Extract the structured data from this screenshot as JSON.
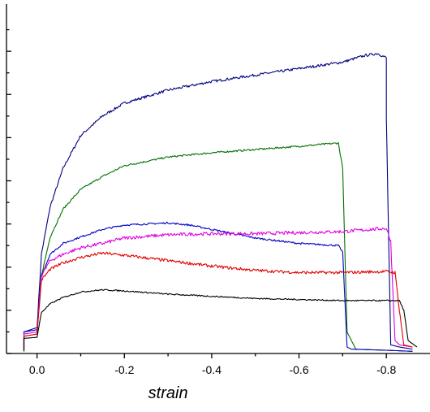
{
  "chart_data": {
    "type": "line",
    "title": "",
    "xlabel": "strain",
    "ylabel": "",
    "x_reversed": true,
    "xlim": [
      0.07,
      -0.9
    ],
    "ylim": [
      0,
      16
    ],
    "x_ticks": [
      0.0,
      -0.2,
      -0.4,
      -0.6,
      -0.8
    ],
    "x_tick_labels": [
      "0.0",
      "-0.2",
      "-0.4",
      "-0.6",
      "-0.8"
    ],
    "y_major_ticks": [
      0,
      2,
      4,
      6,
      8,
      10,
      12,
      14
    ],
    "y_minor_ticks": [
      1,
      3,
      5,
      7,
      9,
      11,
      13,
      15
    ],
    "grid": false,
    "legend": "none",
    "series": [
      {
        "color": "#000080",
        "noise": 0.06,
        "x": [
          0.03,
          0.03,
          0.0,
          -0.01,
          -0.03,
          -0.06,
          -0.1,
          -0.15,
          -0.2,
          -0.3,
          -0.4,
          -0.5,
          -0.6,
          -0.7,
          -0.75,
          -0.78,
          -0.8,
          -0.8,
          -0.81,
          -0.83,
          -0.86
        ],
        "y": [
          0.2,
          1.0,
          1.2,
          4.6,
          6.8,
          8.6,
          10.1,
          11.0,
          11.6,
          12.2,
          12.6,
          12.9,
          13.2,
          13.5,
          13.8,
          13.9,
          13.7,
          10.9,
          0.4,
          0.3,
          0.2
        ]
      },
      {
        "color": "#007000",
        "noise": 0.04,
        "x": [
          0.03,
          0.03,
          0.0,
          -0.01,
          -0.03,
          -0.06,
          -0.1,
          -0.15,
          -0.2,
          -0.3,
          -0.4,
          -0.5,
          -0.6,
          -0.69,
          -0.7,
          -0.71,
          -0.73,
          -0.8,
          -0.86
        ],
        "y": [
          0.1,
          0.8,
          0.9,
          3.6,
          5.4,
          6.7,
          7.6,
          8.2,
          8.7,
          9.1,
          9.3,
          9.45,
          9.6,
          9.75,
          8.6,
          1.0,
          0.2,
          0.15,
          0.1
        ]
      },
      {
        "color": "#0000c0",
        "noise": 0.04,
        "x": [
          0.03,
          0.03,
          0.0,
          -0.01,
          -0.03,
          -0.06,
          -0.1,
          -0.15,
          -0.2,
          -0.3,
          -0.35,
          -0.4,
          -0.5,
          -0.6,
          -0.69,
          -0.7,
          -0.71,
          -0.72,
          -0.8,
          -0.86
        ],
        "y": [
          0.2,
          1.0,
          1.1,
          3.6,
          4.6,
          5.1,
          5.4,
          5.75,
          5.95,
          6.05,
          5.95,
          5.75,
          5.35,
          5.1,
          5.0,
          4.7,
          0.3,
          0.2,
          0.15,
          0.1
        ]
      },
      {
        "color": "#e000e0",
        "noise": 0.08,
        "x": [
          0.03,
          0.03,
          0.0,
          -0.01,
          -0.03,
          -0.06,
          -0.1,
          -0.15,
          -0.2,
          -0.3,
          -0.4,
          -0.5,
          -0.6,
          -0.7,
          -0.8,
          -0.81,
          -0.82,
          -0.83,
          -0.86
        ],
        "y": [
          0.2,
          0.9,
          1.0,
          3.6,
          4.3,
          4.6,
          4.9,
          5.1,
          5.35,
          5.5,
          5.55,
          5.55,
          5.6,
          5.65,
          5.8,
          5.2,
          0.6,
          0.4,
          0.3
        ]
      },
      {
        "color": "#e00000",
        "noise": 0.07,
        "x": [
          0.03,
          0.03,
          0.0,
          -0.01,
          -0.03,
          -0.06,
          -0.1,
          -0.15,
          -0.2,
          -0.3,
          -0.4,
          -0.5,
          -0.6,
          -0.7,
          -0.8,
          -0.82,
          -0.83,
          -0.84,
          -0.86
        ],
        "y": [
          0.1,
          0.8,
          0.9,
          3.4,
          3.9,
          4.2,
          4.45,
          4.65,
          4.55,
          4.3,
          4.05,
          3.85,
          3.75,
          3.75,
          3.8,
          3.75,
          2.0,
          0.4,
          0.3
        ]
      },
      {
        "color": "#000000",
        "noise": 0.03,
        "x": [
          0.03,
          0.03,
          0.0,
          -0.01,
          -0.03,
          -0.06,
          -0.1,
          -0.15,
          -0.2,
          -0.3,
          -0.4,
          -0.5,
          -0.6,
          -0.7,
          -0.8,
          -0.83,
          -0.84,
          -0.85,
          -0.87
        ],
        "y": [
          0.1,
          0.7,
          0.75,
          1.9,
          2.3,
          2.6,
          2.85,
          2.95,
          2.9,
          2.75,
          2.65,
          2.55,
          2.5,
          2.45,
          2.45,
          2.45,
          2.0,
          0.6,
          0.3
        ]
      }
    ]
  }
}
